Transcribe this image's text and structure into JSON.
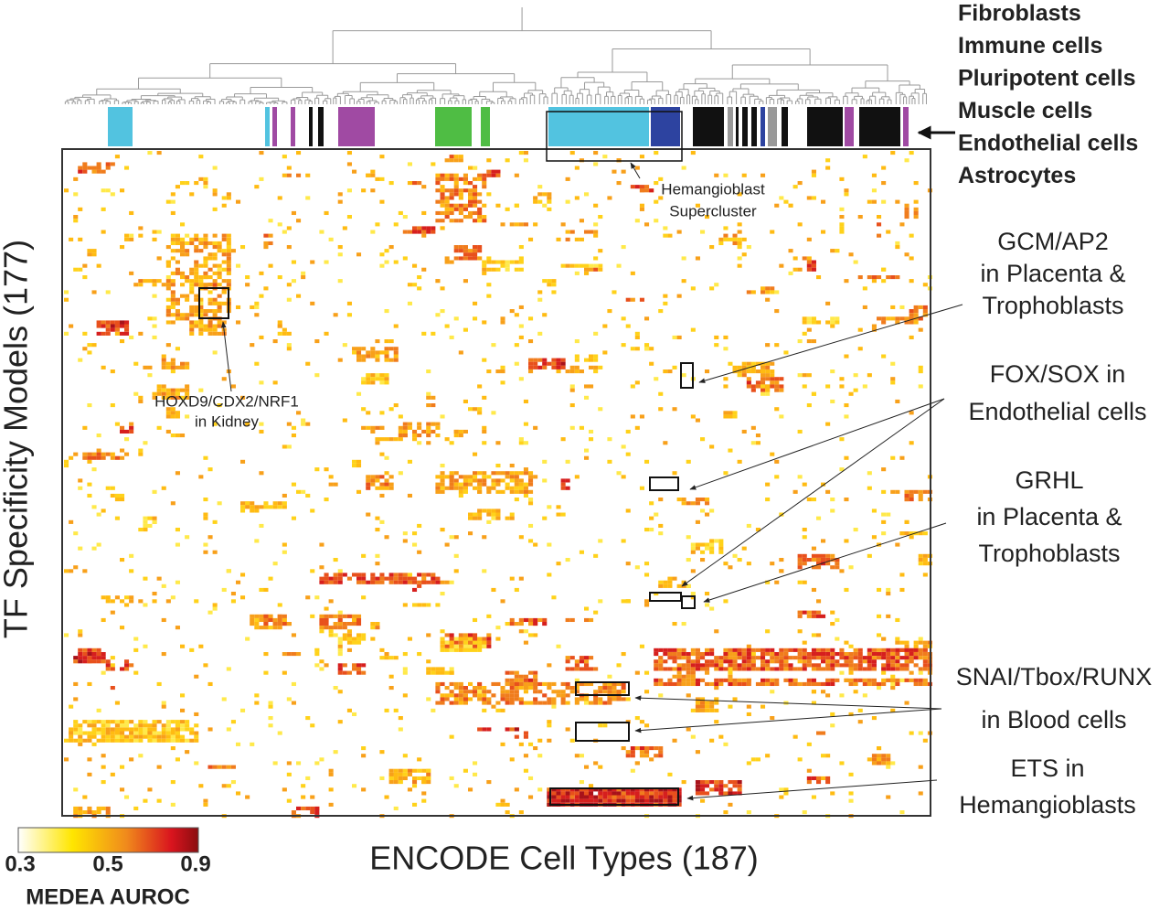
{
  "legend": {
    "items": [
      {
        "label": "Fibroblasts",
        "color": "#111111"
      },
      {
        "label": "Immune cells",
        "color": "#52c3e0"
      },
      {
        "label": "Pluripotent cells",
        "color": "#4fbd44"
      },
      {
        "label": "Muscle cells",
        "color": "#a04aa3"
      },
      {
        "label": "Endothelial cells",
        "color": "#2d43a0"
      },
      {
        "label": "Astrocytes",
        "color": "#999999"
      }
    ]
  },
  "axes": {
    "x_label": "ENCODE Cell Types (187)",
    "y_label": "TF Specificity Models (177)"
  },
  "colorbar": {
    "ticks": [
      0.3,
      0.5,
      0.9
    ],
    "label": "MEDEA AUROC"
  },
  "annotations": [
    {
      "lines": [
        "Hemangioblast",
        "Supercluster"
      ]
    },
    {
      "lines": [
        "HOXD9/CDX2/NRF1",
        "in Kidney"
      ]
    },
    {
      "lines": [
        "GCM/AP2",
        "in Placenta &",
        "Trophoblasts"
      ]
    },
    {
      "lines": [
        "FOX/SOX in",
        "Endothelial cells"
      ]
    },
    {
      "lines": [
        "GRHL",
        "in Placenta &",
        "Trophoblasts"
      ]
    },
    {
      "lines": [
        "SNAI/Tbox/RUNX",
        "in Blood cells"
      ]
    },
    {
      "lines": [
        "ETS in",
        "Hemangioblasts"
      ]
    }
  ]
}
